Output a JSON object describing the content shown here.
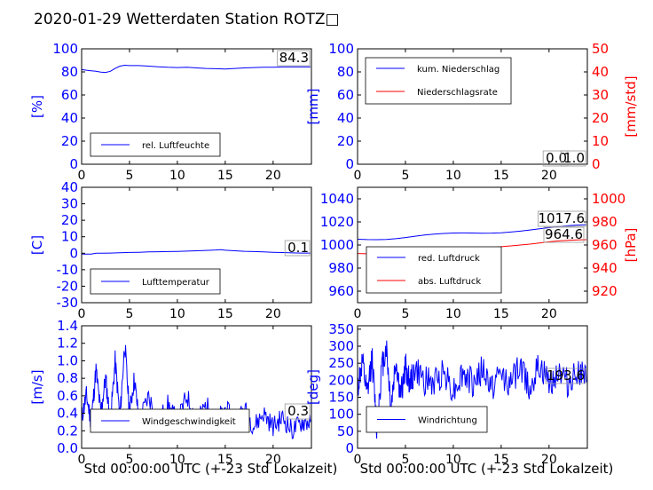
{
  "title": "2020-01-29 Wetterdaten Station ROTZ□",
  "colors": {
    "blue": "#0000ff",
    "red": "#ff0000",
    "black": "#000000"
  },
  "x_axis": {
    "ticks": [
      0,
      5,
      10,
      15,
      20
    ],
    "range": [
      0,
      24
    ],
    "label": "Std 00:00:00 UTC (+-23 Std Lokalzeit)"
  },
  "chart_data": [
    {
      "id": "humidity",
      "type": "line",
      "ylabel": "[%]",
      "ylim": [
        0,
        100
      ],
      "yticks": [
        0,
        20,
        40,
        60,
        80,
        100
      ],
      "series": [
        {
          "name": "rel. Luftfeuchte",
          "color": "#0000ff",
          "x": [
            0,
            0.5,
            1,
            1.5,
            2,
            2.5,
            3,
            3.5,
            4,
            4.5,
            5,
            6,
            7,
            8,
            9,
            10,
            11,
            12,
            13,
            14,
            15,
            16,
            17,
            18,
            19,
            20,
            21,
            22,
            23,
            23.9
          ],
          "y": [
            82,
            81.5,
            81,
            80.5,
            79.8,
            79.5,
            80.5,
            83,
            85,
            85.8,
            85.5,
            85.5,
            85,
            84.5,
            84,
            83.8,
            84,
            83.5,
            83,
            82.8,
            82.5,
            83,
            83.5,
            83.8,
            84,
            84,
            84.3,
            84.3,
            84.3,
            84.3
          ]
        }
      ],
      "annotation": "84.3",
      "legend_loc": "lower-left"
    },
    {
      "id": "precip",
      "type": "line",
      "ylabel": "[mm]",
      "ylim": [
        0,
        100
      ],
      "yticks": [
        0,
        20,
        40,
        60,
        80,
        100
      ],
      "ylabel2": "[mm/std]",
      "ylim2": [
        0,
        50
      ],
      "yticks2": [
        0,
        10,
        20,
        30,
        40,
        50
      ],
      "series": [
        {
          "name": "kum. Niederschlag",
          "color": "#0000ff",
          "axis": "left",
          "x": [
            0,
            23.9
          ],
          "y": [
            0,
            0
          ]
        },
        {
          "name": "Niederschlagsrate",
          "color": "#ff0000",
          "axis": "right",
          "x": [
            0,
            23.9
          ],
          "y": [
            0,
            0
          ]
        }
      ],
      "annotations": [
        "0.0",
        "1.0"
      ],
      "legend_loc": "upper-left"
    },
    {
      "id": "temperature",
      "type": "line",
      "ylabel": "[C]",
      "ylim": [
        -30,
        40
      ],
      "yticks": [
        -30,
        -20,
        -10,
        0,
        10,
        20,
        30,
        40
      ],
      "series": [
        {
          "name": "Lufttemperatur",
          "color": "#0000ff",
          "x": [
            0,
            1,
            1.5,
            2,
            3,
            4,
            5,
            6,
            7,
            8,
            9,
            10,
            11,
            12,
            13,
            14,
            14.5,
            15,
            16,
            17,
            18,
            19,
            20,
            21,
            22,
            23,
            23.9
          ],
          "y": [
            -0.5,
            -0.5,
            0,
            0,
            0.1,
            0.3,
            0.5,
            0.6,
            0.8,
            0.9,
            1.0,
            1.1,
            1.3,
            1.5,
            1.7,
            2.0,
            2.2,
            1.8,
            1.5,
            1.2,
            1.0,
            0.8,
            0.6,
            0.4,
            0.2,
            0.1,
            0.1
          ]
        }
      ],
      "annotation": "0.1",
      "legend_loc": "lower-left"
    },
    {
      "id": "pressure",
      "type": "line",
      "ylabel": "",
      "ylim": [
        950,
        1050
      ],
      "yticks": [
        960,
        980,
        1000,
        1020,
        1040
      ],
      "ylabel2": "[hPa]",
      "ylim2": [
        910,
        1010
      ],
      "yticks2": [
        920,
        940,
        960,
        980,
        1000
      ],
      "series": [
        {
          "name": "red. Luftdruck",
          "color": "#0000ff",
          "axis": "left",
          "x": [
            0,
            1,
            2,
            3,
            4,
            5,
            6,
            7,
            8,
            9,
            10,
            11,
            12,
            13,
            14,
            15,
            16,
            17,
            18,
            19,
            20,
            21,
            22,
            23,
            23.9
          ],
          "y": [
            1005,
            1004.7,
            1004.6,
            1004.8,
            1005.5,
            1006.5,
            1007.6,
            1008.6,
            1009.4,
            1010,
            1010.4,
            1010.5,
            1010.4,
            1010.2,
            1010.3,
            1010.6,
            1011.2,
            1012,
            1013,
            1014,
            1015,
            1016,
            1016.8,
            1017.3,
            1017.6
          ]
        },
        {
          "name": "abs. Luftdruck",
          "color": "#ff0000",
          "axis": "right",
          "x": [
            0,
            1,
            2,
            3,
            4,
            5,
            6,
            7,
            8,
            9,
            10,
            11,
            12,
            13,
            14,
            15,
            16,
            17,
            18,
            19,
            20,
            21,
            22,
            23,
            23.9
          ],
          "y": [
            952.6,
            952.4,
            952.3,
            952.4,
            953.2,
            954.6,
            955.4,
            956.2,
            956.8,
            957.4,
            957.8,
            958,
            958,
            957.9,
            958,
            958.5,
            959.2,
            960,
            960.8,
            961.8,
            962.8,
            963.5,
            964,
            964.4,
            964.6
          ]
        }
      ],
      "annotations": [
        "1017.6",
        "964.6"
      ],
      "legend_loc": "lower-left"
    },
    {
      "id": "wind_speed",
      "type": "line",
      "ylabel": "[m/s]",
      "ylim": [
        0,
        1.4
      ],
      "yticks": [
        0.0,
        0.2,
        0.4,
        0.6,
        0.8,
        1.0,
        1.2,
        1.4
      ],
      "series": [
        {
          "name": "Windgeschwindigkeit",
          "color": "#0000ff",
          "x": [
            0,
            0.5,
            1,
            1.5,
            2,
            2.5,
            3,
            3.5,
            4,
            4.5,
            5,
            5.5,
            6,
            7,
            8,
            9,
            10,
            11,
            12,
            13,
            14,
            15,
            16,
            17,
            18,
            19,
            20,
            21,
            22,
            23,
            23.9
          ],
          "y": [
            0.35,
            0.6,
            0.3,
            0.9,
            0.4,
            0.8,
            0.3,
            1.0,
            0.35,
            1.2,
            0.4,
            0.8,
            0.3,
            0.6,
            0.3,
            0.5,
            0.3,
            0.6,
            0.3,
            0.5,
            0.3,
            0.45,
            0.3,
            0.45,
            0.25,
            0.4,
            0.25,
            0.35,
            0.2,
            0.3,
            0.3
          ]
        }
      ],
      "annotation": "0.3",
      "legend_loc": "lower-left"
    },
    {
      "id": "wind_dir",
      "type": "line",
      "ylabel": "[deg]",
      "ylim": [
        0,
        360
      ],
      "yticks": [
        0,
        50,
        100,
        150,
        200,
        250,
        300,
        350
      ],
      "series": [
        {
          "name": "Windrichtung",
          "color": "#0000ff",
          "x": [
            0,
            0.5,
            1,
            1.5,
            2,
            2.5,
            3,
            3.5,
            4,
            4.5,
            5,
            5.5,
            6,
            7,
            8,
            9,
            10,
            11,
            12,
            13,
            14,
            15,
            16,
            17,
            18,
            19,
            20,
            21,
            22,
            23,
            23.9
          ],
          "y": [
            180,
            250,
            150,
            270,
            60,
            230,
            300,
            120,
            260,
            150,
            240,
            190,
            230,
            200,
            190,
            230,
            170,
            220,
            190,
            230,
            180,
            220,
            190,
            240,
            180,
            240,
            190,
            230,
            190,
            230,
            194
          ]
        }
      ],
      "annotation": "193.6",
      "legend_loc": "lower-left"
    }
  ]
}
